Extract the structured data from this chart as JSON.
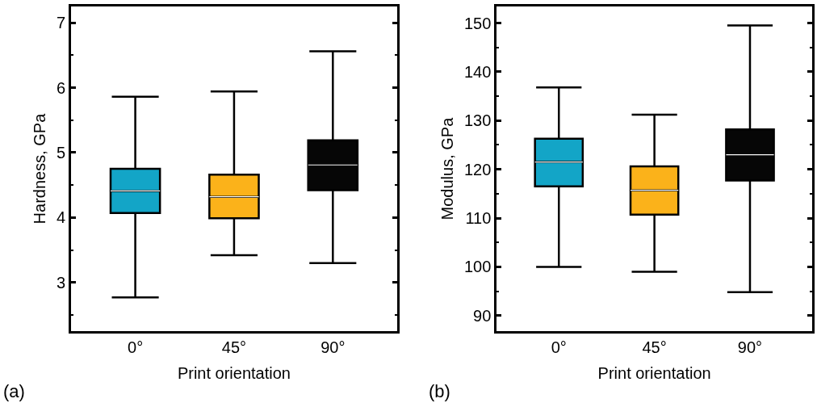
{
  "chart_data": [
    {
      "type": "box",
      "xlabel": "Print orientation",
      "ylabel": "Hardness, GPa",
      "categories": [
        "0°",
        "45°",
        "90°"
      ],
      "colors": [
        "#13a5c7",
        "#fbb21a",
        "#060606"
      ],
      "ylim": [
        2.25,
        7.25
      ],
      "yticks": [
        3,
        4,
        5,
        6,
        7
      ],
      "legend": false,
      "annotations": [
        "(a)"
      ],
      "boxes": [
        {
          "low": 2.77,
          "q1": 4.07,
          "median": 4.41,
          "q3": 4.75,
          "high": 5.86
        },
        {
          "low": 3.42,
          "q1": 3.99,
          "median": 4.32,
          "q3": 4.66,
          "high": 5.94
        },
        {
          "low": 3.3,
          "q1": 4.42,
          "median": 4.81,
          "q3": 5.19,
          "high": 6.56
        }
      ]
    },
    {
      "type": "box",
      "xlabel": "Print orientation",
      "ylabel": "Modulus, GPa",
      "categories": [
        "0°",
        "45°",
        "90°"
      ],
      "colors": [
        "#13a5c7",
        "#fbb21a",
        "#060606"
      ],
      "ylim": [
        86.8,
        153.4
      ],
      "yticks": [
        90,
        100,
        110,
        120,
        130,
        140,
        150
      ],
      "legend": false,
      "annotations": [
        "(b)"
      ],
      "boxes": [
        {
          "low": 100,
          "q1": 116.5,
          "median": 121.5,
          "q3": 126.3,
          "high": 136.8
        },
        {
          "low": 99,
          "q1": 110.7,
          "median": 115.7,
          "q3": 120.6,
          "high": 131.2
        },
        {
          "low": 94.8,
          "q1": 117.7,
          "median": 123,
          "q3": 128.2,
          "high": 149.5
        }
      ]
    }
  ]
}
